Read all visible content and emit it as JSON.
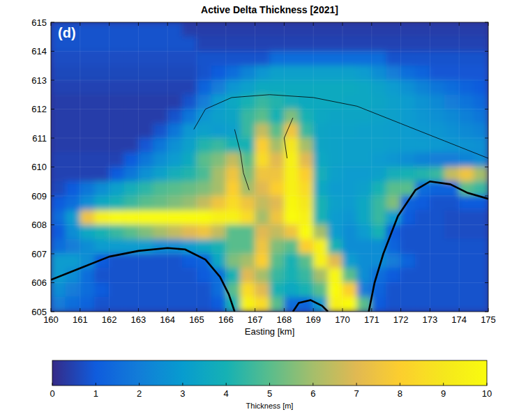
{
  "chart_data": {
    "type": "heatmap",
    "title": "Active Delta Thickness [2021]",
    "panel_label": "(d)",
    "x_label": "Easting [km]",
    "xlim": [
      160,
      175
    ],
    "ylim": [
      605,
      615
    ],
    "xticks": [
      160,
      161,
      162,
      163,
      164,
      165,
      166,
      167,
      168,
      169,
      170,
      171,
      172,
      173,
      174,
      175
    ],
    "yticks": [
      605,
      606,
      607,
      608,
      609,
      610,
      611,
      612,
      613,
      614,
      615
    ],
    "grid": true,
    "x": [
      160.25,
      160.75,
      161.25,
      161.75,
      162.25,
      162.75,
      163.25,
      163.75,
      164.25,
      164.75,
      165.25,
      165.75,
      166.25,
      166.75,
      167.25,
      167.75,
      168.25,
      168.75,
      169.25,
      169.75,
      170.25,
      170.75,
      171.25,
      171.75,
      172.25,
      172.75,
      173.25,
      173.75,
      174.25,
      174.75
    ],
    "y": [
      614.75,
      614.25,
      613.75,
      613.25,
      612.75,
      612.25,
      611.75,
      611.25,
      610.75,
      610.25,
      609.75,
      609.25,
      608.75,
      608.25,
      607.75,
      607.25,
      606.75,
      606.25,
      605.75,
      605.25
    ],
    "cells": [
      [
        0.8,
        0.8,
        0.8,
        0.8,
        0.8,
        0.8,
        0.8,
        0.8,
        0.8,
        0.4,
        0.4,
        0.4,
        0.4,
        0.4,
        0.4,
        0.4,
        0.4,
        0.4,
        0.4,
        0.4,
        0.4,
        0.4,
        0.4,
        0.4,
        0.4,
        0.4,
        0.4,
        0.4,
        0.4,
        0.4
      ],
      [
        0.8,
        0.8,
        0.8,
        0.8,
        0.8,
        0.8,
        0.8,
        0.8,
        0.8,
        0.8,
        0.5,
        0.5,
        0.5,
        0.5,
        0.5,
        0.5,
        0.5,
        0.5,
        0.5,
        0.5,
        0.5,
        0.5,
        0.5,
        0.5,
        0.5,
        0.5,
        0.5,
        0.5,
        0.5,
        0.5
      ],
      [
        0.7,
        0.7,
        0.7,
        0.7,
        0.7,
        0.7,
        0.7,
        0.7,
        0.7,
        0.7,
        0.8,
        0.8,
        0.8,
        0.8,
        0.8,
        1.5,
        1.5,
        1.5,
        1.5,
        1.5,
        1.5,
        1.5,
        1.5,
        0.8,
        0.8,
        0.8,
        0.8,
        0.8,
        0.8,
        0.8
      ],
      [
        0.6,
        0.6,
        0.6,
        0.6,
        0.6,
        0.6,
        0.6,
        0.6,
        0.6,
        0.6,
        0.8,
        1.0,
        1.5,
        2.2,
        2.8,
        3.2,
        3.2,
        3.2,
        3.2,
        3.2,
        3.2,
        3.0,
        2.5,
        2.0,
        1.5,
        1.2,
        0.9,
        0.9,
        0.9,
        0.9
      ],
      [
        0.5,
        0.5,
        0.5,
        0.5,
        0.5,
        0.5,
        0.5,
        0.5,
        0.5,
        0.5,
        1.2,
        2.0,
        2.8,
        3.2,
        3.6,
        3.6,
        3.6,
        3.6,
        3.6,
        3.6,
        3.6,
        3.5,
        3.3,
        3.0,
        2.6,
        2.2,
        1.8,
        1.5,
        1.2,
        1.0
      ],
      [
        0.4,
        0.4,
        0.4,
        0.4,
        0.4,
        0.4,
        0.4,
        0.4,
        0.4,
        0.8,
        2.0,
        3.0,
        3.5,
        4.0,
        4.5,
        4.2,
        3.8,
        3.6,
        3.6,
        3.6,
        3.5,
        3.5,
        3.4,
        3.2,
        3.0,
        2.7,
        2.4,
        2.0,
        1.7,
        1.4
      ],
      [
        0.4,
        0.4,
        0.4,
        0.4,
        0.4,
        0.4,
        0.4,
        0.4,
        0.8,
        1.8,
        2.8,
        3.2,
        3.4,
        4.5,
        5.0,
        4.0,
        5.5,
        4.0,
        3.5,
        3.4,
        3.4,
        3.4,
        3.3,
        3.2,
        3.0,
        2.8,
        2.6,
        2.4,
        2.1,
        1.8
      ],
      [
        0.4,
        0.4,
        0.4,
        0.4,
        0.4,
        0.4,
        0.4,
        0.8,
        1.8,
        2.8,
        3.2,
        3.0,
        3.2,
        4.5,
        6.5,
        5.0,
        7.5,
        4.5,
        3.4,
        3.3,
        3.3,
        3.2,
        3.2,
        3.1,
        3.0,
        2.9,
        2.8,
        2.6,
        2.4,
        2.2
      ],
      [
        0.4,
        0.4,
        0.4,
        0.4,
        0.4,
        0.4,
        0.9,
        1.8,
        2.6,
        3.2,
        4.2,
        4.5,
        4.0,
        4.0,
        8.0,
        6.0,
        9.0,
        6.0,
        3.4,
        3.3,
        3.2,
        3.2,
        3.2,
        3.1,
        3.0,
        3.0,
        2.9,
        2.8,
        2.7,
        2.6
      ],
      [
        0.5,
        0.5,
        0.5,
        0.5,
        0.5,
        1.0,
        1.8,
        2.5,
        3.0,
        3.6,
        5.0,
        5.5,
        6.5,
        5.0,
        8.5,
        7.0,
        9.5,
        7.0,
        3.5,
        3.3,
        3.2,
        3.2,
        3.0,
        2.8,
        2.5,
        2.2,
        2.0,
        2.0,
        2.2,
        2.5
      ],
      [
        0.5,
        0.5,
        0.5,
        0.5,
        1.0,
        1.8,
        2.6,
        3.2,
        3.8,
        4.2,
        4.8,
        6.0,
        7.5,
        5.5,
        7.5,
        7.5,
        9.5,
        8.0,
        3.8,
        3.2,
        3.0,
        3.0,
        3.2,
        3.8,
        4.0,
        4.2,
        4.5,
        6.5,
        7.5,
        6.0
      ],
      [
        0.6,
        1.0,
        1.8,
        2.5,
        3.2,
        3.8,
        4.3,
        4.8,
        5.0,
        5.2,
        5.5,
        6.0,
        8.0,
        6.0,
        7.0,
        8.0,
        9.5,
        8.5,
        3.5,
        3.0,
        3.0,
        3.2,
        4.0,
        5.0,
        5.0,
        1.5,
        1.2,
        1.2,
        5.0,
        4.5
      ],
      [
        1.0,
        1.5,
        2.5,
        3.5,
        4.0,
        4.5,
        5.0,
        5.2,
        5.5,
        5.8,
        6.5,
        7.5,
        8.5,
        7.5,
        6.5,
        7.0,
        9.8,
        9.0,
        4.0,
        3.2,
        3.0,
        3.5,
        4.5,
        5.5,
        1.2,
        1.0,
        0.8,
        0.8,
        1.0,
        1.0
      ],
      [
        1.5,
        3.0,
        7.5,
        9.5,
        10,
        10,
        10,
        10,
        10,
        10,
        10,
        9.5,
        9.5,
        8.5,
        6.0,
        7.5,
        10,
        9.5,
        4.0,
        3.0,
        2.8,
        3.5,
        4.5,
        3.0,
        1.0,
        0.8,
        0.8,
        0.7,
        0.7,
        0.7
      ],
      [
        1.0,
        2.5,
        3.5,
        4.0,
        4.5,
        5.0,
        5.5,
        6.0,
        6.5,
        7.0,
        7.5,
        6.5,
        5.0,
        5.0,
        7.0,
        6.5,
        7.5,
        10,
        6.0,
        3.0,
        2.5,
        3.0,
        4.0,
        1.0,
        0.8,
        0.8,
        0.8,
        0.7,
        0.7,
        0.7
      ],
      [
        1.5,
        2.0,
        2.5,
        3.0,
        3.0,
        3.0,
        3.0,
        2.5,
        2.5,
        3.0,
        3.5,
        4.0,
        5.0,
        5.0,
        7.5,
        5.5,
        5.0,
        8.0,
        9.5,
        4.0,
        2.5,
        2.5,
        2.5,
        1.2,
        0.8,
        0.8,
        0.8,
        0.8,
        0.8,
        0.8
      ],
      [
        3.0,
        3.0,
        2.5,
        1.0,
        0.8,
        0.8,
        0.8,
        0.8,
        0.8,
        1.0,
        1.2,
        3.5,
        5.5,
        6.0,
        8.0,
        5.0,
        4.0,
        5.0,
        9.5,
        7.0,
        3.0,
        2.5,
        2.5,
        2.0,
        1.2,
        0.8,
        0.8,
        0.8,
        0.8,
        0.8
      ],
      [
        3.0,
        2.5,
        1.5,
        0.8,
        0.8,
        0.8,
        0.8,
        0.8,
        0.8,
        0.8,
        1.0,
        1.5,
        4.0,
        7.0,
        6.0,
        4.5,
        4.0,
        4.5,
        6.0,
        9.8,
        5.0,
        2.5,
        1.5,
        1.0,
        0.8,
        0.8,
        0.8,
        0.8,
        0.8,
        0.8
      ],
      [
        2.5,
        2.0,
        1.5,
        1.0,
        0.8,
        0.8,
        0.8,
        0.8,
        0.8,
        0.8,
        0.8,
        1.5,
        5.0,
        8.5,
        7.0,
        4.0,
        3.5,
        4.0,
        5.0,
        10,
        8.0,
        2.0,
        1.2,
        0.8,
        0.8,
        0.8,
        0.8,
        0.8,
        0.8,
        0.8
      ],
      [
        2.0,
        1.5,
        1.2,
        0.8,
        0.8,
        0.8,
        0.8,
        0.8,
        0.8,
        0.8,
        0.8,
        1.0,
        4.0,
        9.5,
        8.5,
        5.0,
        1.5,
        1.2,
        3.0,
        9.5,
        10,
        5.0,
        1.0,
        0.8,
        0.8,
        0.8,
        0.8,
        0.8,
        0.8,
        0.8
      ]
    ],
    "colorbar": {
      "label": "Thickness [m]",
      "range": [
        0,
        10
      ],
      "ticks": [
        0,
        1,
        2,
        3,
        4,
        5,
        6,
        7,
        8,
        9,
        10
      ]
    },
    "shorelines": [
      {
        "x": [
          160,
          161,
          162,
          163,
          164,
          164.6,
          165.3,
          165.8,
          166.1,
          166.3
        ],
        "y": [
          606.1,
          606.5,
          606.9,
          607.1,
          607.2,
          607.15,
          606.8,
          606.2,
          605.6,
          605
        ]
      },
      {
        "x": [
          170.9,
          171.1,
          171.4,
          171.9,
          172.5,
          173,
          173.7,
          174.3,
          175
        ],
        "y": [
          605,
          606,
          607,
          608.3,
          609.2,
          609.5,
          609.4,
          609.1,
          608.9
        ]
      },
      {
        "x": [
          168.3,
          168.5,
          168.9,
          169.3,
          169.5
        ],
        "y": [
          605,
          605.3,
          605.4,
          605.2,
          605
        ]
      }
    ],
    "contours": [
      {
        "x": [
          164.9,
          165.3,
          166.2,
          167.5,
          169,
          170.5,
          172,
          173.5,
          175
        ],
        "y": [
          611.3,
          612,
          612.4,
          612.5,
          612.4,
          612.1,
          611.5,
          610.9,
          610.3
        ]
      },
      {
        "x": [
          166.3,
          166.5,
          166.6,
          166.8
        ],
        "y": [
          611.3,
          610.5,
          609.8,
          609.2
        ]
      },
      {
        "x": [
          168.3,
          168,
          168.1
        ],
        "y": [
          611.7,
          611,
          610.3
        ]
      }
    ]
  }
}
